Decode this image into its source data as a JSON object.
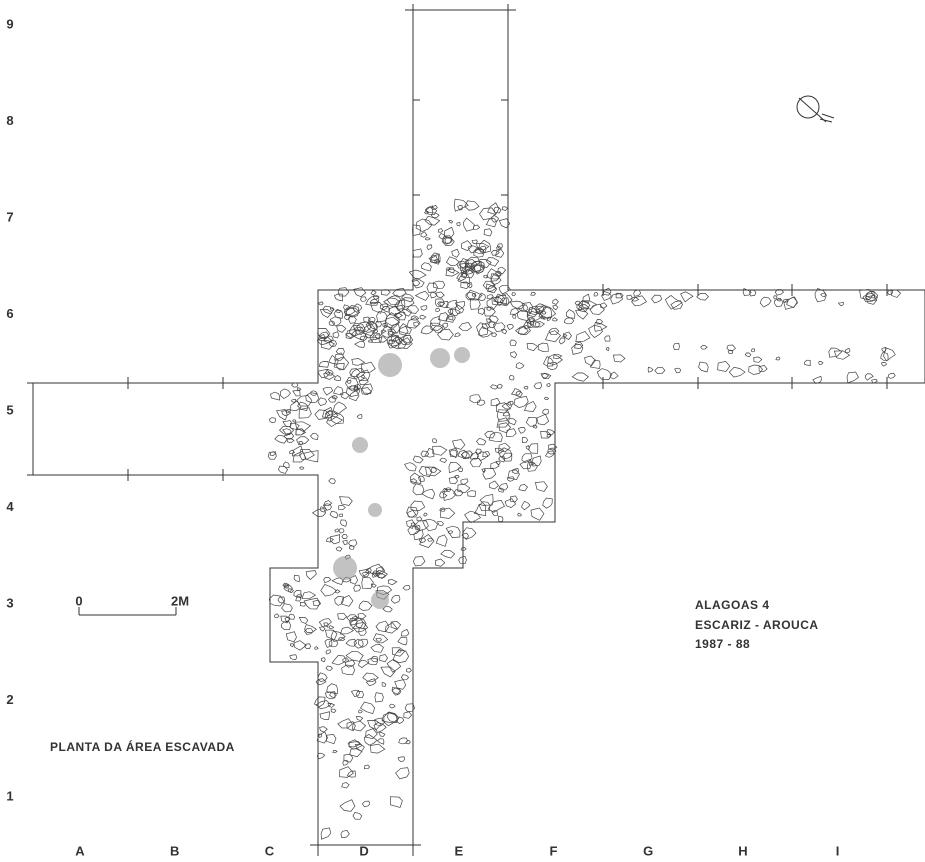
{
  "rows": [
    "1",
    "2",
    "3",
    "4",
    "5",
    "6",
    "7",
    "8",
    "9"
  ],
  "columns": [
    "A",
    "B",
    "C",
    "D",
    "E",
    "F",
    "G",
    "H",
    "I"
  ],
  "scale": {
    "start": "0",
    "end": "2M"
  },
  "title": "PLANTA DA ÁREA ESCAVADA",
  "site": {
    "name": "ALAGOAS 4",
    "location": "ESCARIZ - AROUCA",
    "years": "1987 - 88"
  }
}
